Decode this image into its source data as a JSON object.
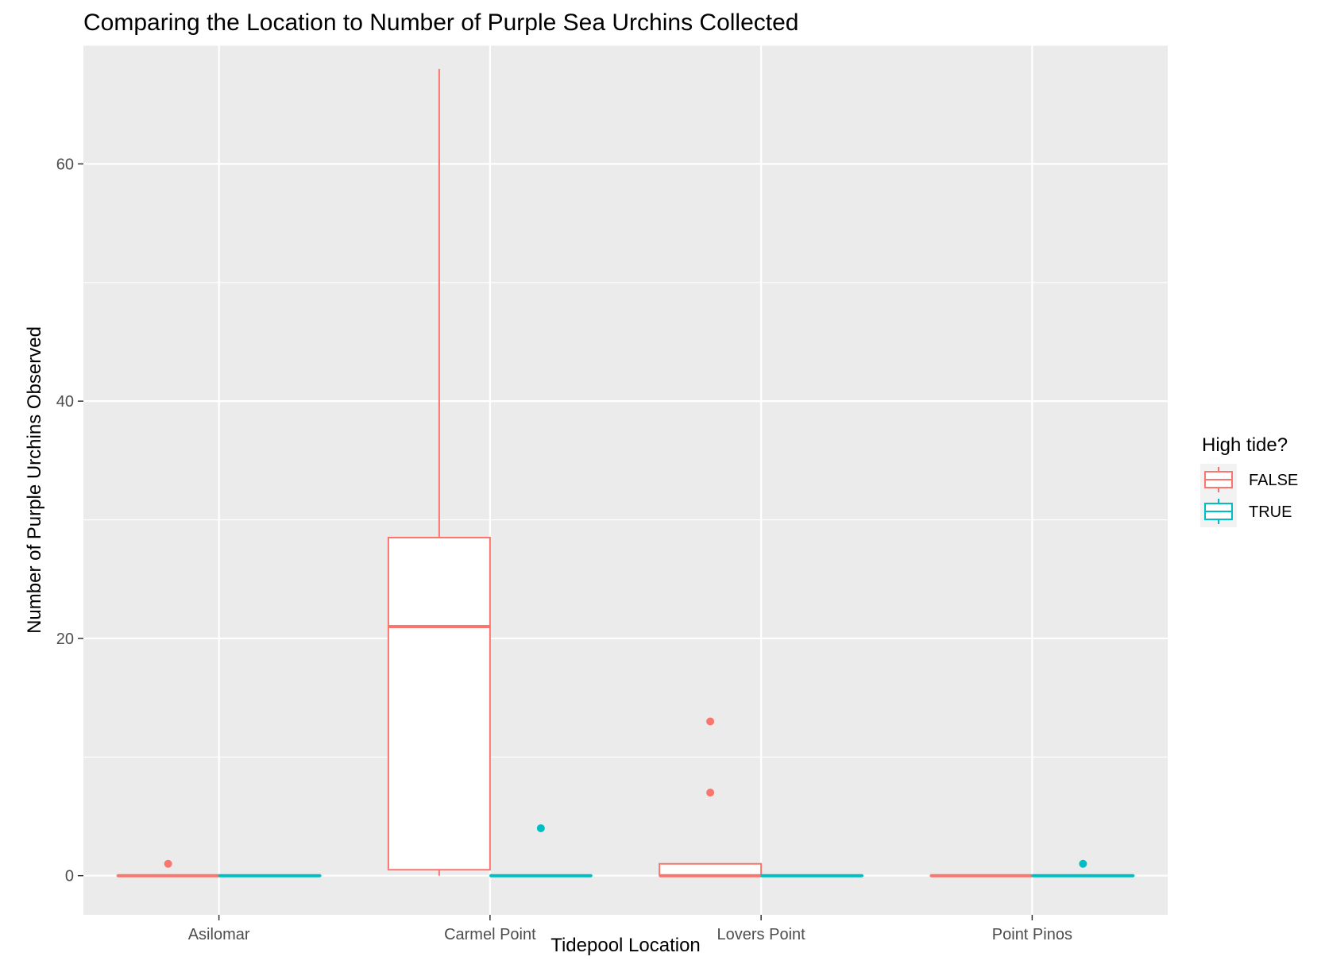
{
  "chart_data": {
    "type": "box",
    "title": "Comparing the Location to Number of Purple Sea Urchins Collected",
    "xlabel": "Tidepool Location",
    "ylabel": "Number of Purple Urchins Observed",
    "categories": [
      "Asilomar",
      "Carmel Point",
      "Lovers Point",
      "Point Pinos"
    ],
    "y_ticks": [
      0,
      20,
      40,
      60
    ],
    "ylim": [
      -3.3,
      70
    ],
    "grid": true,
    "legend": {
      "title": "High tide?",
      "position": "right",
      "entries": [
        "FALSE",
        "TRUE"
      ]
    },
    "colors": {
      "FALSE": "#F8766D",
      "TRUE": "#00BFC4",
      "panel": "#EBEBEB",
      "grid": "#FFFFFF"
    },
    "series": [
      {
        "name": "FALSE",
        "boxes": [
          {
            "category": "Asilomar",
            "min": 0,
            "q1": 0,
            "median": 0,
            "q3": 0,
            "max": 0,
            "outliers": [
              1
            ]
          },
          {
            "category": "Carmel Point",
            "min": 0,
            "q1": 0.5,
            "median": 21,
            "q3": 28.5,
            "max": 68,
            "outliers": []
          },
          {
            "category": "Lovers Point",
            "min": 0,
            "q1": 0,
            "median": 0,
            "q3": 1,
            "max": 1,
            "outliers": [
              7,
              13
            ]
          },
          {
            "category": "Point Pinos",
            "min": 0,
            "q1": 0,
            "median": 0,
            "q3": 0,
            "max": 0,
            "outliers": []
          }
        ]
      },
      {
        "name": "TRUE",
        "boxes": [
          {
            "category": "Asilomar",
            "min": 0,
            "q1": 0,
            "median": 0,
            "q3": 0,
            "max": 0,
            "outliers": []
          },
          {
            "category": "Carmel Point",
            "min": 0,
            "q1": 0,
            "median": 0,
            "q3": 0,
            "max": 0,
            "outliers": [
              4
            ]
          },
          {
            "category": "Lovers Point",
            "min": 0,
            "q1": 0,
            "median": 0,
            "q3": 0,
            "max": 0,
            "outliers": []
          },
          {
            "category": "Point Pinos",
            "min": 0,
            "q1": 0,
            "median": 0,
            "q3": 0,
            "max": 0,
            "outliers": [
              1
            ]
          }
        ]
      }
    ]
  }
}
